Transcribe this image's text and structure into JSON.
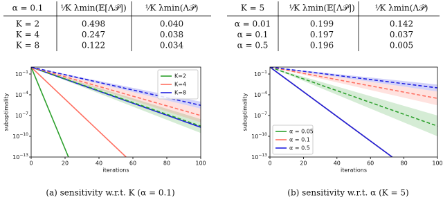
{
  "tables": [
    {
      "header": [
        "α = 0.1",
        "¹⁄K λmin(𝔼[Λ𝒫])",
        "¹⁄K λmin(Λ𝒫)"
      ],
      "rows": [
        [
          "K = 2",
          "0.498",
          "0.040"
        ],
        [
          "K = 4",
          "0.247",
          "0.038"
        ],
        [
          "K = 8",
          "0.122",
          "0.034"
        ]
      ]
    },
    {
      "header": [
        "K = 5",
        "¹⁄K λmin(𝔼[Λ𝒫])",
        "¹⁄K λmin(Λ𝒫)"
      ],
      "rows": [
        [
          "α = 0.01",
          "0.199",
          "0.142"
        ],
        [
          "α = 0.1",
          "0.197",
          "0.037"
        ],
        [
          "α = 0.5",
          "0.196",
          "0.005"
        ]
      ]
    }
  ],
  "chart_data": [
    {
      "type": "line",
      "caption": "(a) sensitivity w.r.t. K (α = 0.1)",
      "x_label": "iterations",
      "y_label": "suboptimality",
      "log_y": true,
      "xlim": [
        0,
        100
      ],
      "ylim": [
        1e-13,
        1
      ],
      "xticks": [
        0,
        20,
        40,
        60,
        80,
        100
      ],
      "yticks": [
        {
          "value": 0.1,
          "label": "10",
          "exponent": "−1"
        },
        {
          "value": 0.0001,
          "label": "10",
          "exponent": "−4"
        },
        {
          "value": 1e-07,
          "label": "10",
          "exponent": "−7"
        },
        {
          "value": 1e-10,
          "label": "10",
          "exponent": "−10"
        },
        {
          "value": 1e-13,
          "label": "10",
          "exponent": "−13"
        }
      ],
      "legend": "upper right",
      "series": [
        {
          "name": "K=2",
          "color": "#2ca02c",
          "x": [
            0,
            22
          ],
          "values": [
            1,
            1e-13
          ]
        },
        {
          "name": "K=4",
          "color": "#ff6f61",
          "x": [
            0,
            56
          ],
          "values": [
            1,
            1e-13
          ]
        },
        {
          "name": "K=8",
          "color": "#1f1fe0",
          "x": [
            0,
            100
          ],
          "values": [
            1,
            2e-09
          ]
        },
        {
          "color": "#2ca02c",
          "dashed": true,
          "x": [
            0,
            100
          ],
          "values": [
            1,
            3e-09
          ],
          "lower": [
            1,
            3e-10
          ],
          "upper": [
            1,
            3e-08
          ]
        },
        {
          "color": "#ff6f61",
          "dashed": true,
          "x": [
            0,
            100
          ],
          "values": [
            1,
            1e-07
          ],
          "lower": [
            1,
            1e-08
          ],
          "upper": [
            1,
            1e-06
          ]
        },
        {
          "color": "#1f1fe0",
          "dashed": true,
          "x": [
            0,
            100
          ],
          "values": [
            1,
            3e-06
          ],
          "lower": [
            1,
            1e-06
          ],
          "upper": [
            1,
            1e-05
          ]
        }
      ]
    },
    {
      "type": "line",
      "caption": "(b) sensitivity w.r.t. α (K = 5)",
      "x_label": "iterations",
      "y_label": "suboptimality",
      "log_y": true,
      "xlim": [
        0,
        100
      ],
      "ylim": [
        1e-13,
        1
      ],
      "xticks": [
        0,
        20,
        40,
        60,
        80,
        100
      ],
      "yticks": [
        {
          "value": 0.1,
          "label": "10",
          "exponent": "−1"
        },
        {
          "value": 0.0001,
          "label": "10",
          "exponent": "−4"
        },
        {
          "value": 1e-07,
          "label": "10",
          "exponent": "−7"
        },
        {
          "value": 1e-10,
          "label": "10",
          "exponent": "−10"
        },
        {
          "value": 1e-13,
          "label": "10",
          "exponent": "−13"
        }
      ],
      "legend": "lower left",
      "series": [
        {
          "name": "α = 0.05",
          "color": "#2ca02c",
          "x": [
            0,
            73
          ],
          "values": [
            1,
            1e-13
          ]
        },
        {
          "name": "α = 0.1",
          "color": "#ff6f61",
          "x": [
            0,
            73
          ],
          "values": [
            1,
            1e-13
          ]
        },
        {
          "name": "α = 0.5",
          "color": "#1f1fe0",
          "x": [
            0,
            73
          ],
          "values": [
            1,
            1e-13
          ]
        },
        {
          "color": "#2ca02c",
          "dashed": true,
          "x": [
            0,
            100
          ],
          "values": [
            1,
            3e-09
          ],
          "lower": [
            1,
            1e-10
          ],
          "upper": [
            1,
            1e-07
          ]
        },
        {
          "color": "#ff6f61",
          "dashed": true,
          "x": [
            0,
            100
          ],
          "values": [
            1,
            3e-05
          ],
          "lower": [
            1,
            3e-06
          ],
          "upper": [
            1,
            0.0003
          ]
        },
        {
          "color": "#1f1fe0",
          "dashed": true,
          "x": [
            0,
            100
          ],
          "values": [
            1,
            0.001
          ],
          "lower": [
            1,
            0.0003
          ],
          "upper": [
            1,
            0.003
          ]
        }
      ]
    }
  ]
}
